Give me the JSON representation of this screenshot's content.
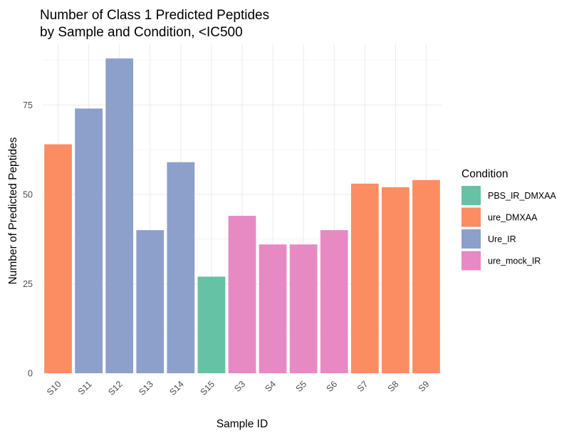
{
  "chart_data": {
    "type": "bar",
    "title": [
      "Number of Class 1 Predicted Peptides",
      "by Sample and Condition, <IC500"
    ],
    "xlabel": "Sample ID",
    "ylabel": "Number of Predicted Peptides",
    "categories": [
      "S10",
      "S11",
      "S12",
      "S13",
      "S14",
      "S15",
      "S3",
      "S4",
      "S5",
      "S6",
      "S7",
      "S8",
      "S9"
    ],
    "values": [
      64,
      74,
      88,
      40,
      59,
      27,
      44,
      36,
      36,
      40,
      53,
      52,
      54
    ],
    "condition": [
      "ure_DMXAA",
      "Ure_IR",
      "Ure_IR",
      "Ure_IR",
      "Ure_IR",
      "PBS_IR_DMXAA",
      "ure_mock_IR",
      "ure_mock_IR",
      "ure_mock_IR",
      "ure_mock_IR",
      "ure_DMXAA",
      "ure_DMXAA",
      "ure_DMXAA"
    ],
    "ylim": [
      0,
      92
    ],
    "yticks": [
      0,
      25,
      50,
      75
    ],
    "grid": true,
    "legend": {
      "title": "Condition",
      "position": "right",
      "entries": [
        {
          "name": "PBS_IR_DMXAA",
          "color": "#66c2a5"
        },
        {
          "name": "ure_DMXAA",
          "color": "#fc8d62"
        },
        {
          "name": "Ure_IR",
          "color": "#8da0cb"
        },
        {
          "name": "ure_mock_IR",
          "color": "#e78ac3"
        }
      ]
    }
  }
}
